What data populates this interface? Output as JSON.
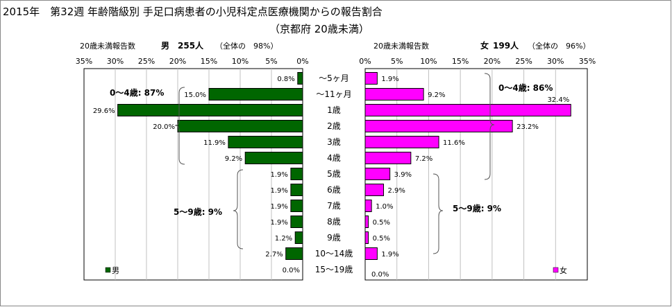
{
  "title": "2015年　第32週 年齢階級別 手足口病患者の小児科定点医療機関からの報告割合",
  "subtitle": "（京都府 20歳未満）",
  "colors": {
    "male": "#006600",
    "female": "#ff00ff",
    "grid": "#c0c0c0"
  },
  "chart_data": {
    "type": "bar",
    "categories": [
      "～5ヶ月",
      "～11ヶ月",
      "1歳",
      "2歳",
      "3歳",
      "4歳",
      "5歳",
      "6歳",
      "7歳",
      "8歳",
      "9歳",
      "10～14歳",
      "15～19歳"
    ],
    "series": [
      {
        "name": "男",
        "values": [
          0.8,
          15.0,
          29.6,
          20.0,
          11.9,
          9.2,
          1.9,
          1.9,
          1.9,
          1.9,
          1.2,
          2.7,
          0.0
        ]
      },
      {
        "name": "女",
        "values": [
          1.9,
          9.2,
          32.4,
          23.2,
          11.6,
          7.2,
          3.9,
          2.9,
          1.0,
          0.5,
          0.5,
          1.9,
          0.0
        ]
      }
    ],
    "xlim": [
      0,
      35
    ],
    "ticks": [
      "35%",
      "30%",
      "25%",
      "20%",
      "15%",
      "10%",
      "5%",
      "0%"
    ],
    "ticks_right": [
      "0%",
      "5%",
      "10%",
      "15%",
      "20%",
      "25%",
      "30%",
      "35%"
    ],
    "grid": true,
    "male_header": {
      "label": "20歳未満報告数",
      "sex": "男",
      "count": "255人",
      "pct": "（全体の　98%）"
    },
    "female_header": {
      "label": "20歳未満報告数",
      "sex": "女",
      "count": "199人",
      "pct": "（全体の　96%）"
    },
    "male_groups": [
      {
        "label": "0～4歳: 87%"
      },
      {
        "label": "5～9歳: 9%"
      }
    ],
    "female_groups": [
      {
        "label": "0～4歳: 86%"
      },
      {
        "label": "5～9歳: 9%"
      }
    ],
    "legend": {
      "male": "男",
      "female": "女"
    }
  }
}
